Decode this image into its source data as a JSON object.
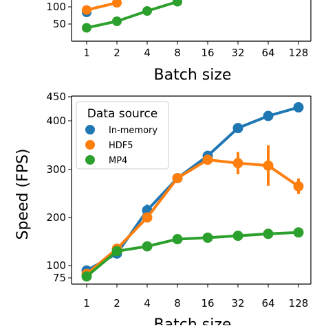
{
  "chart_data": [
    {
      "type": "line",
      "panel": "top (partially visible)",
      "categories": [
        "1",
        "2",
        "4",
        "8",
        "16",
        "32",
        "64",
        "128"
      ],
      "xlabel": "Batch size",
      "ylabel": "",
      "yticks": [
        50,
        100
      ],
      "ylim": [
        20,
        110
      ],
      "series": [
        {
          "name": "In-memory",
          "color": "#1f77b4",
          "values": [
            84,
            null,
            null,
            null,
            null,
            null,
            null,
            null
          ]
        },
        {
          "name": "HDF5",
          "color": "#ff7f0e",
          "values": [
            91,
            112,
            null,
            null,
            null,
            null,
            null,
            null
          ]
        },
        {
          "name": "MP4",
          "color": "#2ca02c",
          "values": [
            39,
            58,
            88,
            115,
            null,
            null,
            null,
            null
          ]
        }
      ]
    },
    {
      "type": "line",
      "panel": "bottom",
      "categories": [
        "1",
        "2",
        "4",
        "8",
        "16",
        "32",
        "64",
        "128"
      ],
      "xlabel": "Batch size",
      "ylabel": "Speed (FPS)",
      "yticks": [
        75,
        100,
        200,
        300,
        400,
        450
      ],
      "ylim": [
        55,
        460
      ],
      "grid": false,
      "legend": {
        "title": "Data source",
        "placement": "top-left"
      },
      "series": [
        {
          "name": "In-memory",
          "color": "#1f77b4",
          "values": [
            90,
            125,
            215,
            282,
            328,
            385,
            410,
            428
          ],
          "errors": [
            0,
            0,
            12,
            0,
            0,
            0,
            0,
            0
          ]
        },
        {
          "name": "HDF5",
          "color": "#ff7f0e",
          "values": [
            83,
            135,
            200,
            282,
            320,
            313,
            308,
            265
          ],
          "errors": [
            0,
            0,
            0,
            0,
            0,
            23,
            42,
            16
          ]
        },
        {
          "name": "MP4",
          "color": "#2ca02c",
          "values": [
            78,
            130,
            140,
            155,
            158,
            162,
            166,
            169
          ],
          "errors": [
            0,
            0,
            0,
            0,
            0,
            0,
            0,
            0
          ]
        }
      ]
    }
  ],
  "legend": {
    "title": "Data source",
    "items": [
      "In-memory",
      "HDF5",
      "MP4"
    ]
  }
}
